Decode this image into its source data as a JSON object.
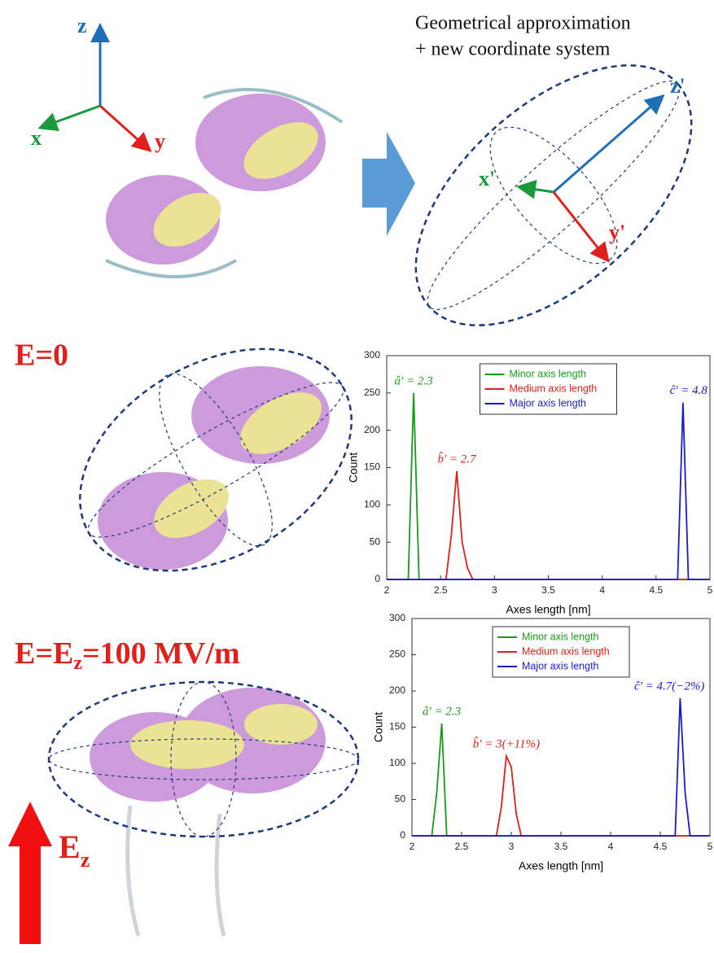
{
  "figure": {
    "title_lines": [
      "Geometrical approximation",
      "+ new coordinate system"
    ],
    "axes": [
      "z",
      "x",
      "y"
    ],
    "new_axes": [
      "z'",
      "x'",
      "y'"
    ],
    "panels": [
      {
        "label": "E=0"
      },
      {
        "label_parts": [
          "E=E",
          "z",
          "=100 MV/m"
        ]
      }
    ],
    "field_arrow": [
      "E",
      "z"
    ]
  },
  "chart_data": [
    {
      "type": "line",
      "xlabel": "Axes length [nm]",
      "ylabel": "Count",
      "xlim": [
        2,
        5
      ],
      "xticks": [
        2,
        2.5,
        3,
        3.5,
        4,
        4.5,
        5
      ],
      "ylim": [
        0,
        300
      ],
      "yticks": [
        0,
        50,
        100,
        150,
        200,
        250,
        300
      ],
      "grid": false,
      "legend": "top-center",
      "series": [
        {
          "name": "Minor axis length",
          "color": "#1a9a1a",
          "annotation": "â' = 2.3",
          "x": [
            2,
            2.2,
            2.25,
            2.3,
            5
          ],
          "values": [
            0,
            0,
            250,
            0,
            0
          ]
        },
        {
          "name": "Medium axis length",
          "color": "#e0201a",
          "annotation": "b̂' = 2.7",
          "x": [
            2,
            2.55,
            2.6,
            2.65,
            2.7,
            2.75,
            2.8,
            5
          ],
          "values": [
            0,
            0,
            60,
            145,
            50,
            15,
            0,
            0
          ]
        },
        {
          "name": "Major axis length",
          "color": "#1a1ad0",
          "annotation": "ĉ' = 4.8",
          "x": [
            2,
            4.7,
            4.75,
            4.8,
            5
          ],
          "values": [
            0,
            0,
            237,
            0,
            0
          ]
        }
      ]
    },
    {
      "type": "line",
      "xlabel": "Axes length [nm]",
      "ylabel": "Count",
      "xlim": [
        2,
        5
      ],
      "xticks": [
        2,
        2.5,
        3,
        3.5,
        4,
        4.5,
        5
      ],
      "ylim": [
        0,
        300
      ],
      "yticks": [
        0,
        50,
        100,
        150,
        200,
        250,
        300
      ],
      "grid": false,
      "legend": "top-center",
      "series": [
        {
          "name": "Minor axis length",
          "color": "#1a9a1a",
          "annotation": "â' = 2.3",
          "x": [
            2,
            2.2,
            2.25,
            2.3,
            2.35,
            5
          ],
          "values": [
            0,
            0,
            60,
            155,
            0,
            0
          ]
        },
        {
          "name": "Medium axis length",
          "color": "#e0201a",
          "annotation": "b̂' = 3(+11%)",
          "x": [
            2,
            2.85,
            2.9,
            2.95,
            3,
            3.05,
            3.1,
            5
          ],
          "values": [
            0,
            0,
            40,
            110,
            95,
            30,
            0,
            0
          ]
        },
        {
          "name": "Major axis length",
          "color": "#1a1ad0",
          "annotation": "ĉ' = 4.7(−2%)",
          "x": [
            2,
            4.65,
            4.7,
            4.75,
            4.8,
            5
          ],
          "values": [
            0,
            0,
            190,
            60,
            0,
            0
          ]
        }
      ]
    }
  ]
}
